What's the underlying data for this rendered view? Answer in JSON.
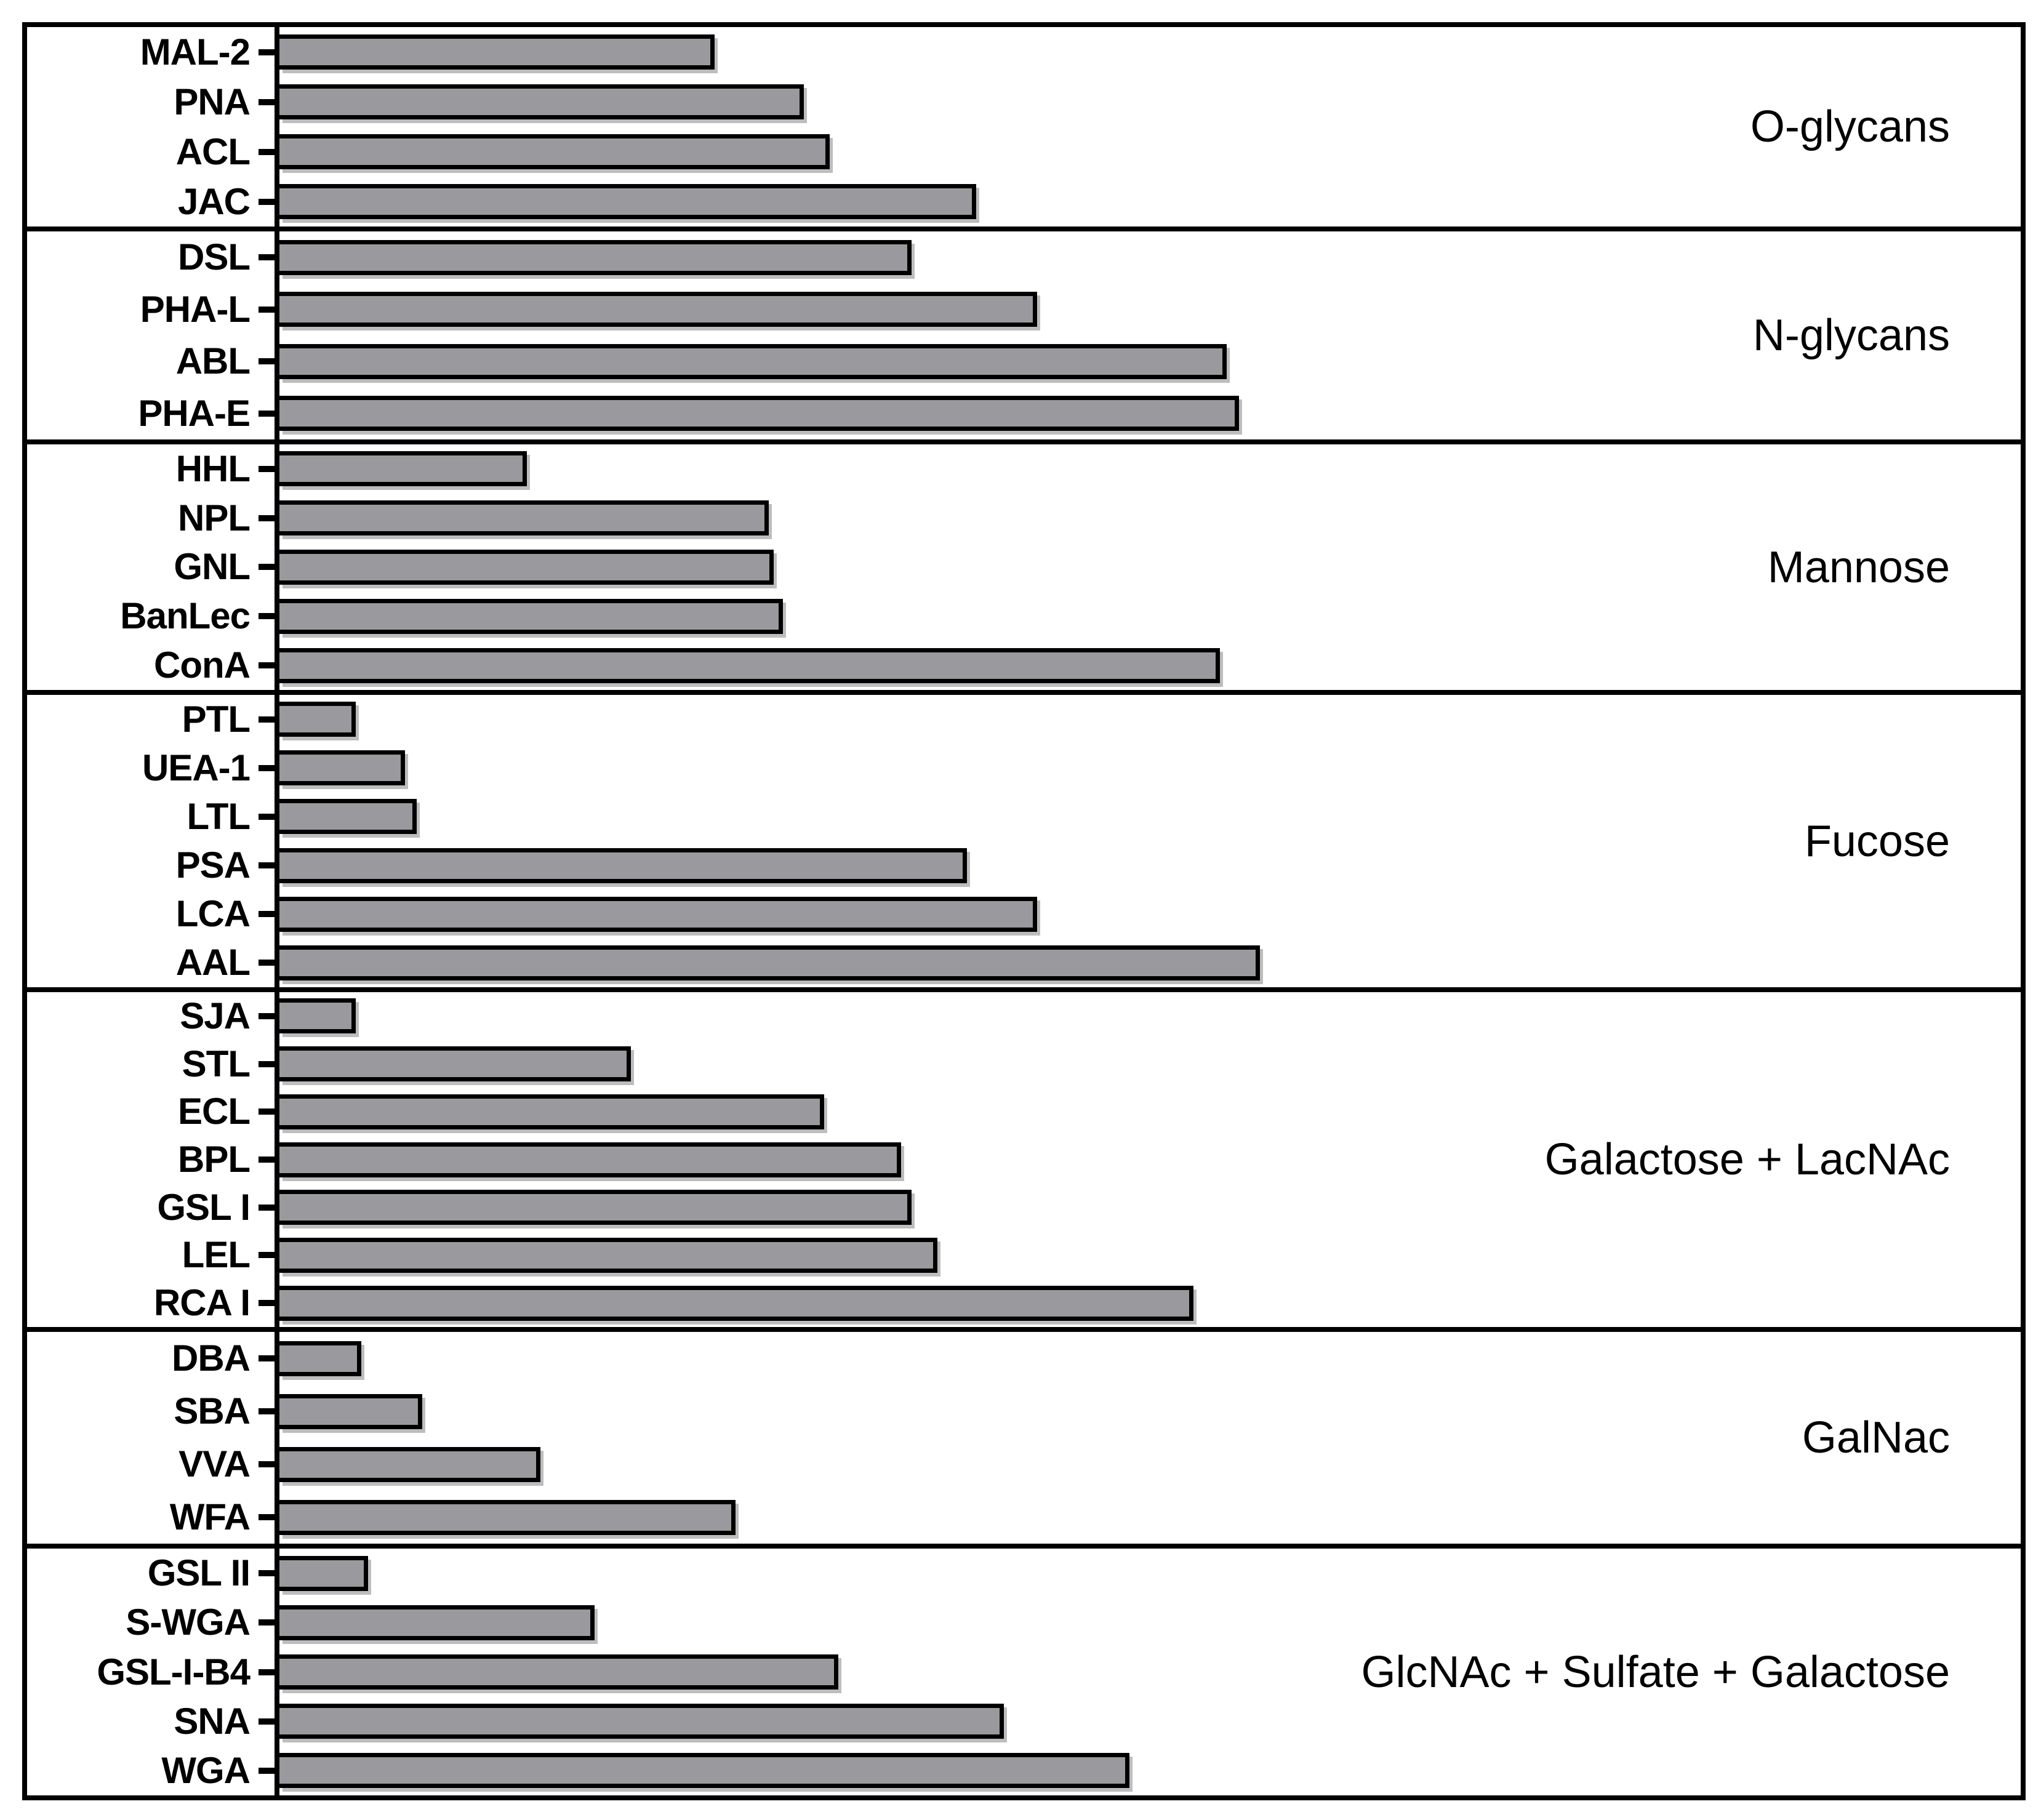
{
  "chart_data": {
    "type": "bar",
    "orientation": "horizontal",
    "title": "",
    "xlabel": "",
    "ylabel": "",
    "x_axis": {
      "tick_labels_visible": false,
      "gridlines": false
    },
    "value_units": "relative bar length, percent of x-axis span (no numeric scale shown in figure)",
    "bar_fill_color": "#9a9a9e",
    "bar_border_color": "#000000",
    "background_color": "#ffffff",
    "panels": [
      {
        "group": "O-glycans",
        "rows": [
          {
            "label": "MAL-2",
            "value": 25.0
          },
          {
            "label": "PNA",
            "value": 30.1
          },
          {
            "label": "ACL",
            "value": 31.6
          },
          {
            "label": "JAC",
            "value": 40.0
          }
        ]
      },
      {
        "group": "N-glycans",
        "rows": [
          {
            "label": "DSL",
            "value": 36.3
          },
          {
            "label": "PHA-L",
            "value": 43.5
          },
          {
            "label": "ABL",
            "value": 54.4
          },
          {
            "label": "PHA-E",
            "value": 55.1
          }
        ]
      },
      {
        "group": "Mannose",
        "rows": [
          {
            "label": "HHL",
            "value": 14.2
          },
          {
            "label": "NPL",
            "value": 28.1
          },
          {
            "label": "GNL",
            "value": 28.4
          },
          {
            "label": "BanLec",
            "value": 28.9
          },
          {
            "label": "ConA",
            "value": 54.0
          }
        ]
      },
      {
        "group": "Fucose",
        "rows": [
          {
            "label": "PTL",
            "value": 4.4
          },
          {
            "label": "UEA-1",
            "value": 7.2
          },
          {
            "label": "LTL",
            "value": 7.9
          },
          {
            "label": "PSA",
            "value": 39.5
          },
          {
            "label": "LCA",
            "value": 43.5
          },
          {
            "label": "AAL",
            "value": 56.3
          }
        ]
      },
      {
        "group": "Galactose + LacNAc",
        "rows": [
          {
            "label": "SJA",
            "value": 4.4
          },
          {
            "label": "STL",
            "value": 20.2
          },
          {
            "label": "ECL",
            "value": 31.3
          },
          {
            "label": "BPL",
            "value": 35.7
          },
          {
            "label": "GSL I",
            "value": 36.3
          },
          {
            "label": "LEL",
            "value": 37.8
          },
          {
            "label": "RCA I",
            "value": 52.5
          }
        ]
      },
      {
        "group": "GalNac",
        "rows": [
          {
            "label": "DBA",
            "value": 4.7
          },
          {
            "label": "SBA",
            "value": 8.2
          },
          {
            "label": "VVA",
            "value": 15.0
          },
          {
            "label": "WFA",
            "value": 26.2
          }
        ]
      },
      {
        "group": "GlcNAc + Sulfate + Galactose",
        "rows": [
          {
            "label": "GSL II",
            "value": 5.1
          },
          {
            "label": "S-WGA",
            "value": 18.1
          },
          {
            "label": "GSL-I-B4",
            "value": 32.1
          },
          {
            "label": "SNA",
            "value": 41.6
          },
          {
            "label": "WGA",
            "value": 48.8
          }
        ]
      }
    ]
  }
}
